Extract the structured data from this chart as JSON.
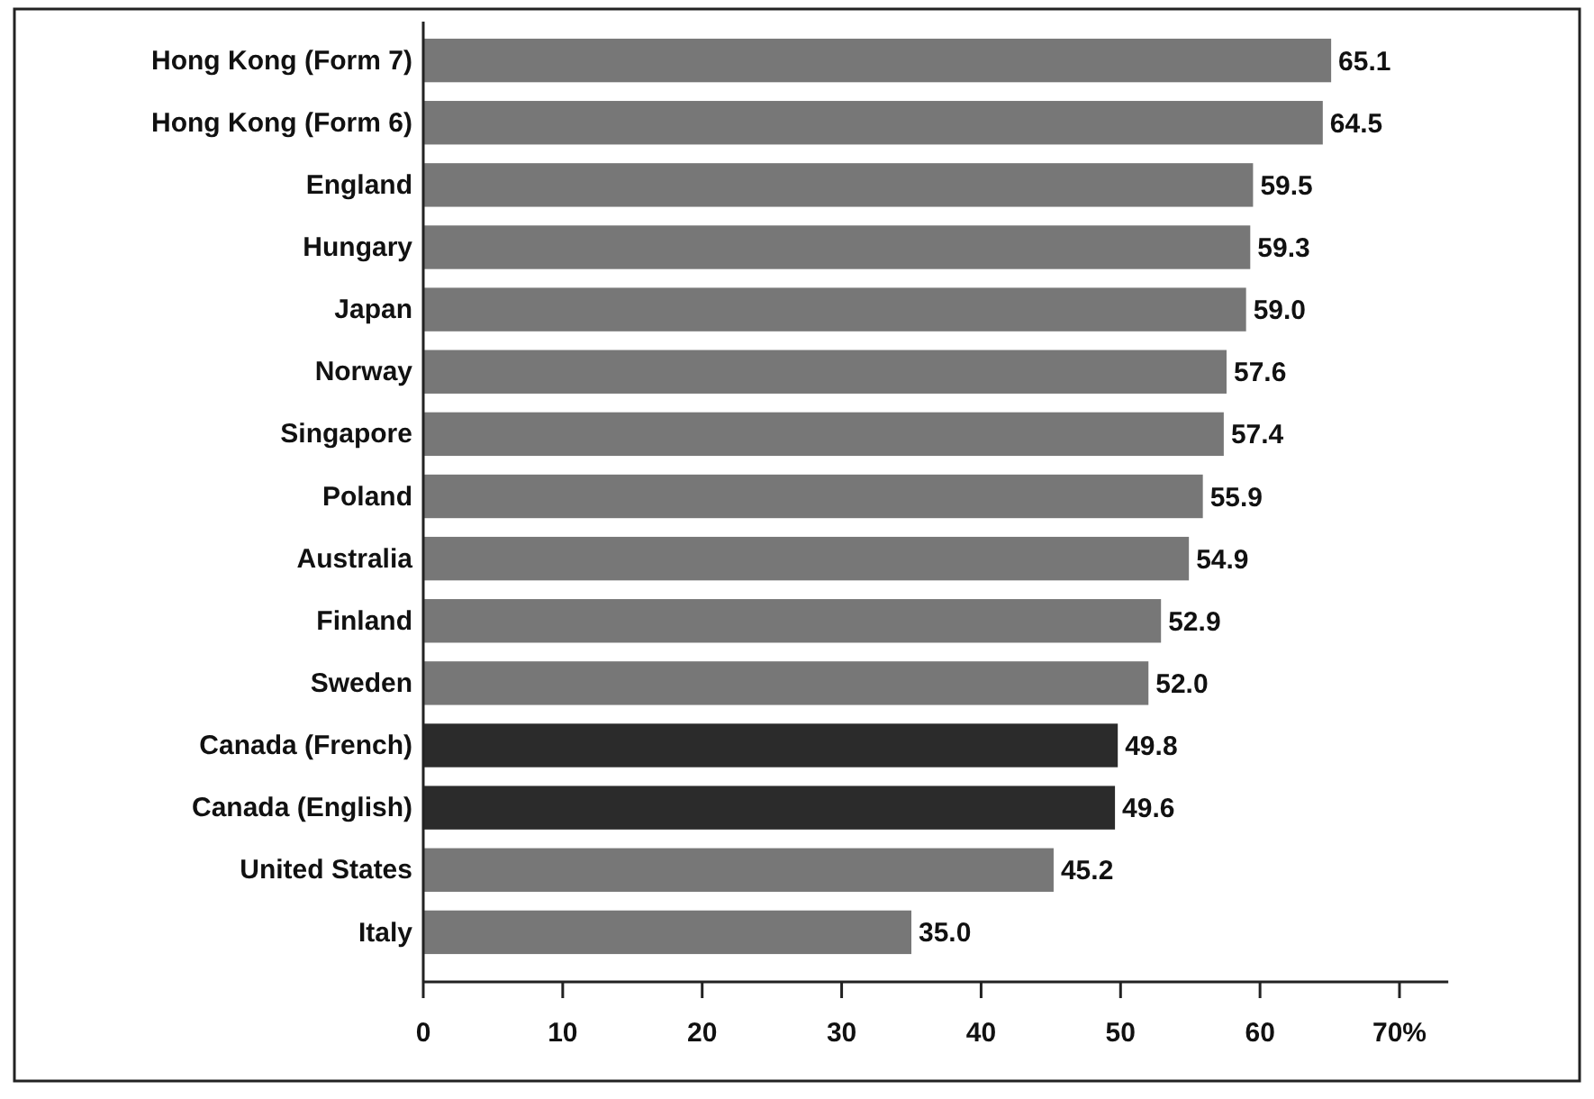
{
  "chart_data": {
    "type": "bar",
    "orientation": "horizontal",
    "categories": [
      "Hong Kong (Form 7)",
      "Hong Kong (Form 6)",
      "England",
      "Hungary",
      "Japan",
      "Norway",
      "Singapore",
      "Poland",
      "Australia",
      "Finland",
      "Sweden",
      "Canada (French)",
      "Canada (English)",
      "United States",
      "Italy"
    ],
    "values": [
      65.1,
      64.5,
      59.5,
      59.3,
      59.0,
      57.6,
      57.4,
      55.9,
      54.9,
      52.9,
      52.0,
      49.8,
      49.6,
      45.2,
      35.0
    ],
    "value_labels": [
      "65.1",
      "64.5",
      "59.5",
      "59.3",
      "59.0",
      "57.6",
      "57.4",
      "55.9",
      "54.9",
      "52.9",
      "52.0",
      "49.8",
      "49.6",
      "45.2",
      "35.0"
    ],
    "colors": [
      "#777777",
      "#777777",
      "#777777",
      "#777777",
      "#777777",
      "#777777",
      "#777777",
      "#777777",
      "#777777",
      "#777777",
      "#777777",
      "#2b2b2b",
      "#2b2b2b",
      "#777777",
      "#777777"
    ],
    "xlim": [
      0,
      73.5
    ],
    "xticks": [
      0,
      10,
      20,
      30,
      40,
      50,
      60,
      {
        "value": 70,
        "label": "70%"
      }
    ],
    "xlabel": null
  }
}
